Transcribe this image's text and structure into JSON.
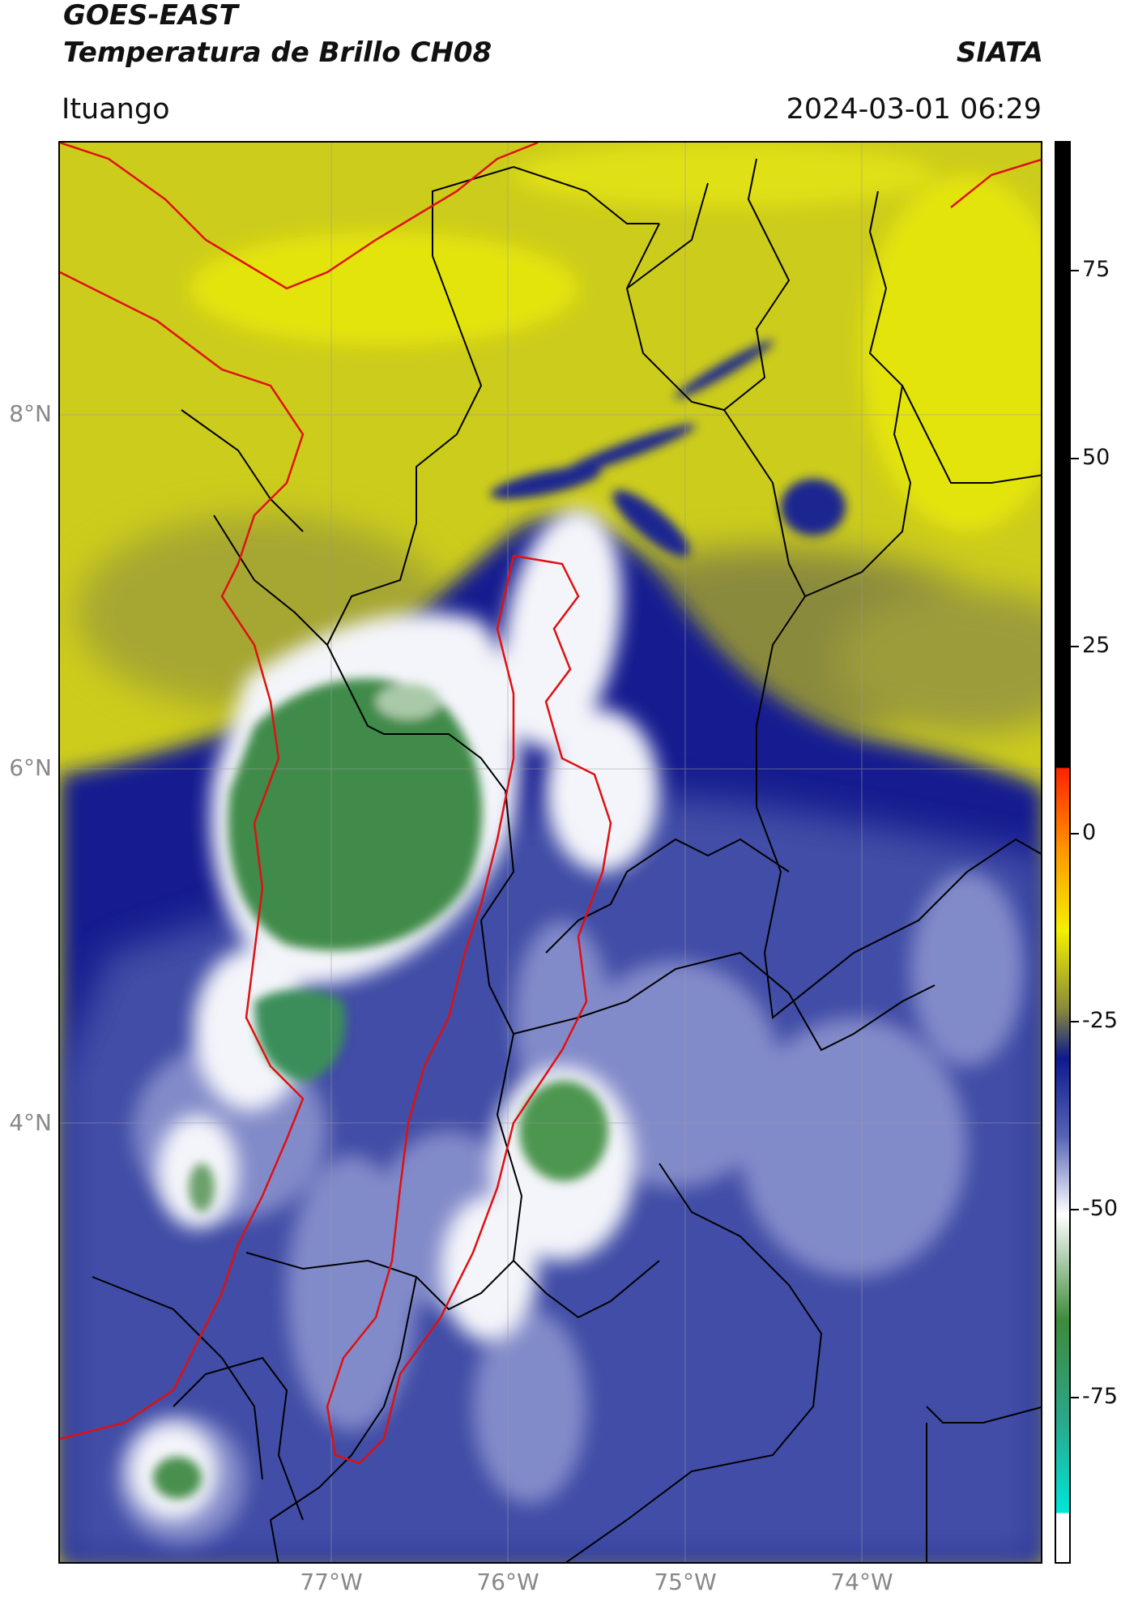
{
  "header": {
    "satellite": "GOES-EAST",
    "product": "Temperatura de Brillo CH08",
    "org": "SIATA",
    "region": "Ituango",
    "timestamp": "2024-03-01 06:29"
  },
  "axes": {
    "lat_labels": [
      "8°N",
      "6°N",
      "4°N"
    ],
    "lon_labels": [
      "77°W",
      "76°W",
      "75°W",
      "74°W"
    ]
  },
  "colorbar": {
    "ticks": [
      "75",
      "50",
      "25",
      "0",
      "-25",
      "-50",
      "-75"
    ],
    "colors": {
      "black": "#000000",
      "red": "#ff2200",
      "orange": "#ff9900",
      "yellow": "#f3f000",
      "olive": "#8a8a3a",
      "navy": "#0d1a8c",
      "blue": "#5663b5",
      "white": "#ffffff",
      "green": "#3d8a3a",
      "teal": "#2aa78a",
      "cyan": "#00e6d8"
    }
  },
  "map_colors": {
    "background_yellow": "#cccc1c",
    "bright_yellow": "#e4e40f",
    "olive": "#9a9a38",
    "navy": "#101e8e",
    "mid_blue": "#4a55aa",
    "light_blue": "#8890cc",
    "white_cloud": "#f2f4f8",
    "green_core": "#3c8c4a",
    "green_light": "#8fc08a",
    "border_black": "#000000",
    "border_red": "#e01010"
  }
}
